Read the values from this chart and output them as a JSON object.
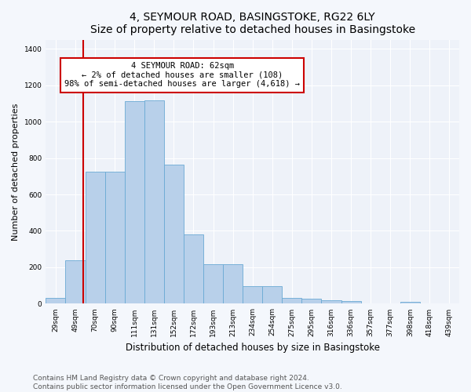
{
  "title": "4, SEYMOUR ROAD, BASINGSTOKE, RG22 6LY",
  "subtitle": "Size of property relative to detached houses in Basingstoke",
  "xlabel": "Distribution of detached houses by size in Basingstoke",
  "ylabel": "Number of detached properties",
  "bar_labels": [
    "29sqm",
    "49sqm",
    "70sqm",
    "90sqm",
    "111sqm",
    "131sqm",
    "152sqm",
    "172sqm",
    "193sqm",
    "213sqm",
    "234sqm",
    "254sqm",
    "275sqm",
    "295sqm",
    "316sqm",
    "336sqm",
    "357sqm",
    "377sqm",
    "398sqm",
    "418sqm",
    "439sqm"
  ],
  "bar_values": [
    32,
    240,
    727,
    727,
    1112,
    1118,
    762,
    380,
    218,
    218,
    97,
    97,
    30,
    27,
    20,
    14,
    0,
    0,
    11,
    0,
    0
  ],
  "bar_color": "#b8d0ea",
  "bar_edge_color": "#6aaad4",
  "vline_x": 1.4,
  "vline_color": "#cc0000",
  "annotation_text": "4 SEYMOUR ROAD: 62sqm\n← 2% of detached houses are smaller (108)\n98% of semi-detached houses are larger (4,618) →",
  "annotation_box_color": "#ffffff",
  "annotation_box_edge_color": "#cc0000",
  "ylim": [
    0,
    1450
  ],
  "yticks": [
    0,
    200,
    400,
    600,
    800,
    1000,
    1200,
    1400
  ],
  "footer_line1": "Contains HM Land Registry data © Crown copyright and database right 2024.",
  "footer_line2": "Contains public sector information licensed under the Open Government Licence v3.0.",
  "background_color": "#f4f7fc",
  "plot_background_color": "#eef2f9",
  "title_fontsize": 10,
  "subtitle_fontsize": 9.5,
  "xlabel_fontsize": 8.5,
  "ylabel_fontsize": 8,
  "tick_fontsize": 6.5,
  "annotation_fontsize": 7.5,
  "footer_fontsize": 6.5
}
